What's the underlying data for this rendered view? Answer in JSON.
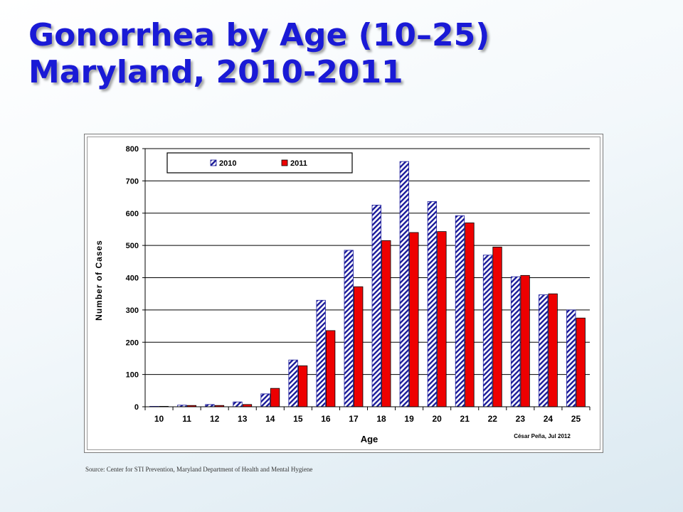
{
  "slide": {
    "title_line1": "Gonorrhea by Age (10–25)",
    "title_line2": "Maryland, 2010-2011",
    "source": "Source: Center for STI Prevention, Maryland Department of Health and Mental Hygiene"
  },
  "chart_data": {
    "type": "bar",
    "title": "",
    "xlabel": "Age",
    "ylabel": "Number of Cases",
    "categories": [
      "10",
      "11",
      "12",
      "13",
      "14",
      "15",
      "16",
      "17",
      "18",
      "19",
      "20",
      "21",
      "22",
      "23",
      "24",
      "25"
    ],
    "series": [
      {
        "name": "2010",
        "values": [
          1,
          5,
          7,
          15,
          40,
          145,
          330,
          485,
          625,
          760,
          636,
          592,
          470,
          403,
          347,
          300
        ],
        "color": "#1a1a9a",
        "pattern": "diagonal-hatch"
      },
      {
        "name": "2011",
        "values": [
          0,
          4,
          4,
          7,
          57,
          127,
          236,
          372,
          515,
          540,
          543,
          570,
          495,
          407,
          350,
          275
        ],
        "color": "#ee0000",
        "pattern": "solid"
      }
    ],
    "ylim": [
      0,
      800
    ],
    "yticks": [
      0,
      100,
      200,
      300,
      400,
      500,
      600,
      700,
      800
    ],
    "grid": true,
    "legend_position": "top",
    "annotation": "César Peña, Jul 2012"
  }
}
